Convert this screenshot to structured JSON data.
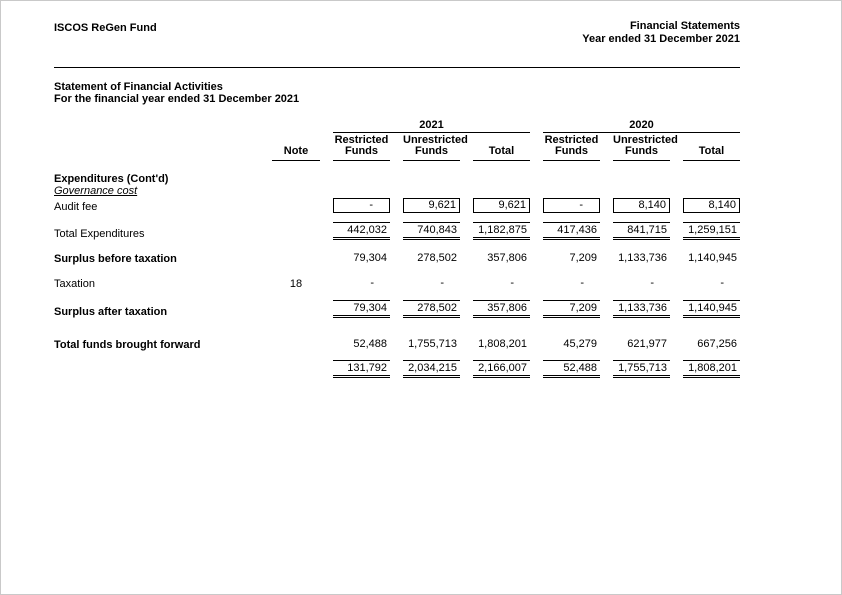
{
  "page_header": {
    "company": "ISCOS ReGen Fund",
    "title": "Financial Statements",
    "period": "Year ended 31 December 2021"
  },
  "statement_header": {
    "title": "Statement of Financial Activities",
    "period": "For the financial year ended 31 December 2021"
  },
  "table": {
    "year_groups": [
      {
        "label": "2021"
      },
      {
        "label": "2020"
      }
    ],
    "note_header": "Note",
    "columns": [
      {
        "top": "Restricted",
        "bottom": "Funds"
      },
      {
        "top": "Unrestricted",
        "bottom": "Funds"
      },
      {
        "top": "",
        "bottom": "Total"
      },
      {
        "top": "Restricted",
        "bottom": "Funds"
      },
      {
        "top": "Unrestricted",
        "bottom": "Funds"
      },
      {
        "top": "",
        "bottom": "Total"
      }
    ],
    "rows": [
      {
        "label": "Expenditures (Cont'd)"
      },
      {
        "label": "Governance cost"
      },
      {
        "label": "Audit fee",
        "values": [
          "-",
          "9,621",
          "9,621",
          "-",
          "8,140",
          "8,140"
        ]
      },
      {
        "label": "Total Expenditures",
        "values": [
          "442,032",
          "740,843",
          "1,182,875",
          "417,436",
          "841,715",
          "1,259,151"
        ]
      },
      {
        "label": "Surplus before taxation",
        "values": [
          "79,304",
          "278,502",
          "357,806",
          "7,209",
          "1,133,736",
          "1,140,945"
        ]
      },
      {
        "label": "Taxation",
        "note": "18",
        "values": [
          "-",
          "-",
          "-",
          "-",
          "-",
          "-"
        ]
      },
      {
        "label": "Surplus after taxation",
        "values": [
          "79,304",
          "278,502",
          "357,806",
          "7,209",
          "1,133,736",
          "1,140,945"
        ]
      },
      {
        "label": "Total funds brought forward",
        "values": [
          "52,488",
          "1,755,713",
          "1,808,201",
          "45,279",
          "621,977",
          "667,256"
        ]
      },
      {
        "label": "",
        "values": [
          "131,792",
          "2,034,215",
          "2,166,007",
          "52,488",
          "1,755,713",
          "1,808,201"
        ]
      }
    ]
  }
}
